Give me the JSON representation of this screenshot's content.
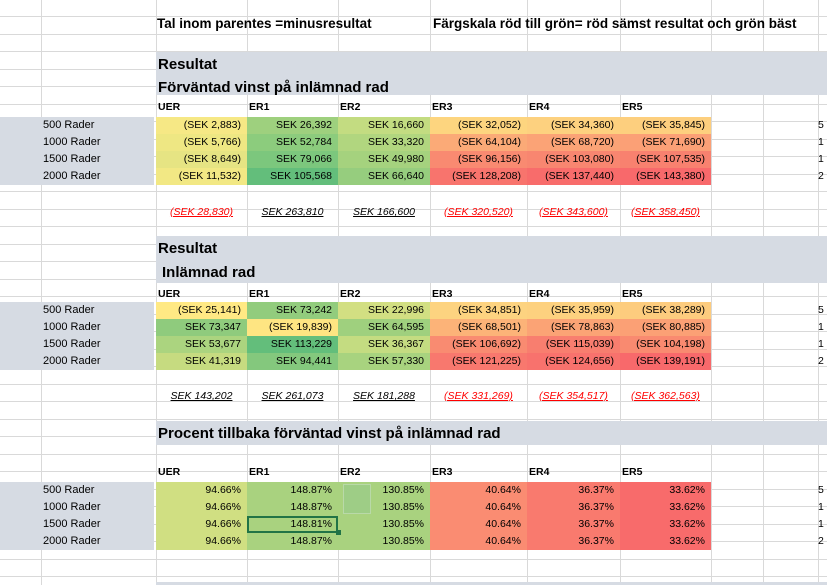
{
  "notes": {
    "parenthesis": "Tal inom parentes =minusresultat",
    "color_scale": "Färgskala röd till grön= röd sämst resultat och grön bäst"
  },
  "columns": [
    "UER",
    "ER1",
    "ER2",
    "ER3",
    "ER4",
    "ER5"
  ],
  "row_labels": [
    "500 Rader",
    "1000 Rader",
    "1500 Rader",
    "2000 Rader"
  ],
  "edge_digits": [
    "5",
    "1",
    "1",
    "2"
  ],
  "sections": [
    {
      "title": "Resultat",
      "subtitle": "Förväntad vinst på inlämnad rad",
      "rows": [
        [
          "(SEK 2,883)",
          "SEK 26,392",
          "SEK 16,660",
          "(SEK 32,052)",
          "(SEK 34,360)",
          "(SEK 35,845)"
        ],
        [
          "(SEK 5,766)",
          "SEK 52,784",
          "SEK 33,320",
          "(SEK 64,104)",
          "(SEK 68,720)",
          "(SEK 71,690)"
        ],
        [
          "(SEK 8,649)",
          "SEK 79,066",
          "SEK 49,980",
          "(SEK 96,156)",
          "(SEK 103,080)",
          "(SEK 107,535)"
        ],
        [
          "(SEK 11,532)",
          "SEK 105,568",
          "SEK 66,640",
          "(SEK 128,208)",
          "(SEK 137,440)",
          "(SEK 143,380)"
        ]
      ],
      "totals": [
        "(SEK 28,830)",
        "SEK 263,810",
        "SEK 166,600",
        "(SEK 320,520)",
        "(SEK 343,600)",
        "(SEK 358,450)"
      ]
    },
    {
      "title": "Resultat",
      "subtitle": "Inlämnad rad",
      "rows": [
        [
          "(SEK 25,141)",
          "SEK 73,242",
          "SEK 22,996",
          "(SEK 34,851)",
          "(SEK 35,959)",
          "(SEK 38,289)"
        ],
        [
          "SEK 73,347",
          "(SEK 19,839)",
          "SEK 64,595",
          "(SEK 68,501)",
          "(SEK 78,863)",
          "(SEK 80,885)"
        ],
        [
          "SEK 53,677",
          "SEK 113,229",
          "SEK 36,367",
          "(SEK 106,692)",
          "(SEK 115,039)",
          "(SEK 104,198)"
        ],
        [
          "SEK 41,319",
          "SEK 94,441",
          "SEK 57,330",
          "(SEK 121,225)",
          "(SEK 124,656)",
          "(SEK 139,191)"
        ]
      ],
      "totals": [
        "SEK 143,202",
        "SEK 261,073",
        "SEK 181,288",
        "(SEK 331,269)",
        "(SEK 354,517)",
        "(SEK 362,563)"
      ]
    },
    {
      "title": "Procent tillbaka förväntad vinst på inlämnad rad",
      "rows": [
        [
          "94.66%",
          "148.87%",
          "130.85%",
          "40.64%",
          "36.37%",
          "33.62%"
        ],
        [
          "94.66%",
          "148.87%",
          "130.85%",
          "40.64%",
          "36.37%",
          "33.62%"
        ],
        [
          "94.66%",
          "148.81%",
          "130.85%",
          "40.64%",
          "36.37%",
          "33.62%"
        ],
        [
          "94.66%",
          "148.87%",
          "130.85%",
          "40.64%",
          "36.37%",
          "33.62%"
        ]
      ]
    }
  ],
  "colors": {
    "band": "#d6dbe3",
    "s1": [
      [
        "#f6e885",
        "#9ed07e",
        "#c3dc81",
        "#fdd57f",
        "#fdd17f",
        "#fdcf7e"
      ],
      [
        "#eee783",
        "#8ccc7d",
        "#b1d67f",
        "#fbaa77",
        "#fba376",
        "#fba076"
      ],
      [
        "#e6e483",
        "#7cc77d",
        "#a5d27e",
        "#f98a71",
        "#f88670",
        "#f8816f"
      ],
      [
        "#f2e884",
        "#63be7b",
        "#96cd7e",
        "#f8746d",
        "#f86c6b",
        "#f8696b"
      ]
    ],
    "s2": [
      [
        "#ffe984",
        "#92cc7d",
        "#d2df82",
        "#fdd380",
        "#fdd17f",
        "#fdcc7e"
      ],
      [
        "#8fcb7d",
        "#fee582",
        "#9fd07e",
        "#fcb378",
        "#fba375",
        "#fba075"
      ],
      [
        "#abd47f",
        "#63be7b",
        "#c4dc81",
        "#f98b71",
        "#f87e6f",
        "#f98a70"
      ],
      [
        "#c6db80",
        "#84c87d",
        "#a8d37f",
        "#f8786e",
        "#f8726d",
        "#f8696b"
      ]
    ],
    "s3": [
      "#d0df82",
      "#a9d27f",
      "#a9d27f",
      "#fa8c72",
      "#f97a6e",
      "#f86b6b"
    ]
  }
}
